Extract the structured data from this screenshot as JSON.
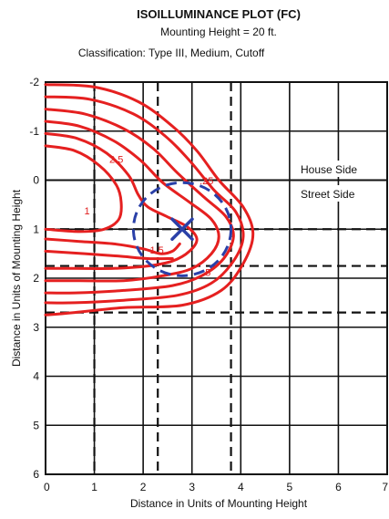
{
  "chart_data": {
    "type": "contour",
    "title": "ISOILLUMINANCE PLOT (FC)",
    "subtitle_1": "Mounting Height = 20 ft.",
    "subtitle_2": "Classification: Type III, Medium, Cutoff",
    "xlabel": "Distance in Units of Mounting Height",
    "ylabel": "Distance in Units of Mounting Height",
    "xlim": [
      0,
      7
    ],
    "ylim": [
      -2,
      6
    ],
    "y_inverted": true,
    "x_ticks": [
      "0",
      "1",
      "2",
      "3",
      "4",
      "5",
      "6",
      "7"
    ],
    "y_ticks": [
      "-2",
      "-1",
      "0",
      "1",
      "2",
      "3",
      "4",
      "5",
      "6"
    ],
    "grid": true,
    "regions": {
      "house_side_label": "House Side",
      "street_side_label": "Street Side",
      "divider_y": 0
    },
    "dashed_lines": {
      "vertical_x": [
        1.0,
        2.3,
        3.8
      ],
      "horizontal_y": [
        1.0,
        1.75,
        2.7
      ]
    },
    "luminaire": {
      "x": 2.8,
      "y": 1.0,
      "ellipse_rx": 1.0,
      "ellipse_ry": 0.95
    },
    "contour_labels": [
      {
        "text": "2.5",
        "x": 1.45,
        "y": -0.35
      },
      {
        "text": ".25",
        "x": 3.3,
        "y": 0.08
      },
      {
        "text": "1.5",
        "x": 2.28,
        "y": 1.5
      },
      {
        "text": ".5",
        "x": 3.3,
        "y": 1.95
      },
      {
        "text": "1",
        "x": 0.85,
        "y": 0.7
      }
    ],
    "contours": [
      {
        "level": "1",
        "points": [
          [
            0,
            -1.95
          ],
          [
            1.0,
            -1.9
          ],
          [
            1.9,
            -1.6
          ],
          [
            2.6,
            -1.1
          ],
          [
            3.1,
            -0.6
          ],
          [
            3.55,
            0.0
          ],
          [
            4.05,
            0.55
          ],
          [
            4.25,
            1.1
          ],
          [
            4.05,
            1.7
          ],
          [
            3.6,
            2.25
          ],
          [
            2.8,
            2.55
          ],
          [
            1.6,
            2.6
          ],
          [
            0.6,
            2.7
          ],
          [
            0,
            2.75
          ]
        ]
      },
      {
        "level": "2",
        "points": [
          [
            0,
            -1.7
          ],
          [
            0.9,
            -1.65
          ],
          [
            1.8,
            -1.35
          ],
          [
            2.45,
            -0.9
          ],
          [
            2.95,
            -0.4
          ],
          [
            3.45,
            0.2
          ],
          [
            3.9,
            0.65
          ],
          [
            4.05,
            1.15
          ],
          [
            3.85,
            1.65
          ],
          [
            3.4,
            2.1
          ],
          [
            2.7,
            2.35
          ],
          [
            1.6,
            2.45
          ],
          [
            0.6,
            2.5
          ],
          [
            0,
            2.5
          ]
        ]
      },
      {
        "level": "3",
        "points": [
          [
            0,
            -1.45
          ],
          [
            0.8,
            -1.35
          ],
          [
            1.6,
            -1.05
          ],
          [
            2.2,
            -0.65
          ],
          [
            2.7,
            -0.15
          ],
          [
            3.25,
            0.35
          ],
          [
            3.7,
            0.75
          ],
          [
            3.85,
            1.15
          ],
          [
            3.65,
            1.6
          ],
          [
            3.2,
            1.95
          ],
          [
            2.6,
            2.15
          ],
          [
            1.6,
            2.25
          ],
          [
            0.6,
            2.3
          ],
          [
            0,
            2.3
          ]
        ]
      },
      {
        "level": "4",
        "points": [
          [
            0,
            -1.2
          ],
          [
            0.7,
            -1.1
          ],
          [
            1.4,
            -0.8
          ],
          [
            1.95,
            -0.4
          ],
          [
            2.4,
            0.05
          ],
          [
            2.95,
            0.45
          ],
          [
            3.4,
            0.8
          ],
          [
            3.55,
            1.15
          ],
          [
            3.4,
            1.5
          ],
          [
            3.0,
            1.8
          ],
          [
            2.4,
            1.95
          ],
          [
            1.6,
            2.05
          ],
          [
            0.7,
            2.05
          ],
          [
            0,
            2.05
          ]
        ]
      },
      {
        "level": "5",
        "points": [
          [
            0,
            -0.95
          ],
          [
            0.65,
            -0.85
          ],
          [
            1.25,
            -0.55
          ],
          [
            1.7,
            -0.1
          ],
          [
            1.9,
            0.3
          ],
          [
            2.1,
            0.55
          ],
          [
            2.5,
            0.75
          ],
          [
            2.9,
            0.95
          ],
          [
            3.1,
            1.2
          ],
          [
            2.95,
            1.45
          ],
          [
            2.6,
            1.65
          ],
          [
            2.1,
            1.75
          ],
          [
            1.4,
            1.8
          ],
          [
            0.6,
            1.8
          ],
          [
            0,
            1.8
          ]
        ]
      },
      {
        "level": "6",
        "points": [
          [
            0,
            -0.7
          ],
          [
            0.6,
            -0.6
          ],
          [
            1.1,
            -0.3
          ],
          [
            1.45,
            0.1
          ],
          [
            1.55,
            0.45
          ],
          [
            1.5,
            0.8
          ],
          [
            1.2,
            1.0
          ],
          [
            0.7,
            1.05
          ],
          [
            0,
            1.0
          ]
        ]
      },
      {
        "level": "7",
        "points": [
          [
            0,
            1.2
          ],
          [
            0.7,
            1.25
          ],
          [
            1.4,
            1.3
          ],
          [
            2.0,
            1.4
          ],
          [
            2.35,
            1.5
          ],
          [
            2.6,
            1.45
          ],
          [
            2.75,
            1.3
          ]
        ]
      },
      {
        "level": "8",
        "points": [
          [
            0,
            1.45
          ],
          [
            0.8,
            1.5
          ],
          [
            1.5,
            1.55
          ],
          [
            2.1,
            1.6
          ],
          [
            2.6,
            1.6
          ]
        ]
      }
    ],
    "colors": {
      "contour": "#e52020",
      "ellipse": "#2a40a8",
      "grid": "#111111",
      "dash": "#111111"
    }
  }
}
